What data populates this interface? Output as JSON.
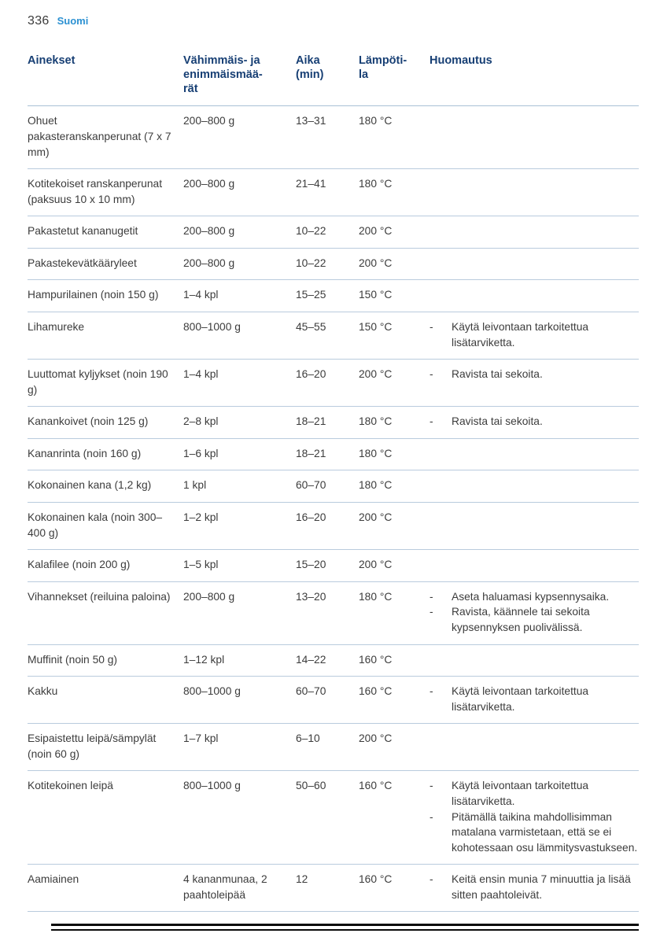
{
  "page": {
    "number": "336",
    "language": "Suomi"
  },
  "colors": {
    "heading_blue": "#173f74",
    "accent_blue": "#2c91d2",
    "body_text": "#3c3c3c",
    "table_rule": "#b9cbdd",
    "bottom_rule": "#0a0a0a"
  },
  "table": {
    "remark_bullet": "-",
    "headers": [
      "Ainekset",
      "Vähimmäis- ja\nenimmäismää-\nrät",
      "Aika\n(min)",
      "Lämpöti-\nla",
      "Huomautus"
    ],
    "rows": [
      {
        "ainekset": "Ohuet pakasteranskanperunat (7 x 7 mm)",
        "maara": "200–800 g",
        "aika": "13–31",
        "lampotila": "180 °C",
        "huomautus": []
      },
      {
        "ainekset": "Kotitekoiset ranskanperunat (paksuus 10 x 10 mm)",
        "maara": "200–800 g",
        "aika": "21–41",
        "lampotila": "180 °C",
        "huomautus": []
      },
      {
        "ainekset": "Pakastetut kananugetit",
        "maara": "200–800 g",
        "aika": "10–22",
        "lampotila": "200 °C",
        "huomautus": []
      },
      {
        "ainekset": "Pakastekevätkääryleet",
        "maara": "200–800 g",
        "aika": "10–22",
        "lampotila": "200 °C",
        "huomautus": []
      },
      {
        "ainekset": "Hampurilainen (noin 150 g)",
        "maara": "1–4 kpl",
        "aika": "15–25",
        "lampotila": "150 °C",
        "huomautus": []
      },
      {
        "ainekset": "Lihamureke",
        "maara": "800–1000 g",
        "aika": "45–55",
        "lampotila": "150 °C",
        "huomautus": [
          "Käytä leivontaan tarkoitettua lisätarviketta."
        ]
      },
      {
        "ainekset": "Luuttomat kyljykset (noin 190 g)",
        "maara": "1–4 kpl",
        "aika": "16–20",
        "lampotila": "200 °C",
        "huomautus": [
          "Ravista tai sekoita."
        ]
      },
      {
        "ainekset": "Kanankoivet (noin 125 g)",
        "maara": "2–8 kpl",
        "aika": "18–21",
        "lampotila": "180 °C",
        "huomautus": [
          "Ravista tai sekoita."
        ]
      },
      {
        "ainekset": "Kananrinta (noin 160 g)",
        "maara": "1–6 kpl",
        "aika": "18–21",
        "lampotila": "180 °C",
        "huomautus": []
      },
      {
        "ainekset": "Kokonainen kana (1,2 kg)",
        "maara": "1 kpl",
        "aika": "60–70",
        "lampotila": "180 °C",
        "huomautus": []
      },
      {
        "ainekset": "Kokonainen kala (noin 300–400 g)",
        "maara": "1–2 kpl",
        "aika": "16–20",
        "lampotila": "200 °C",
        "huomautus": []
      },
      {
        "ainekset": "Kalafilee (noin 200 g)",
        "maara": "1–5 kpl",
        "aika": "15–20",
        "lampotila": "200 °C",
        "huomautus": []
      },
      {
        "ainekset": "Vihannekset (reiluina paloina)",
        "maara": "200–800 g",
        "aika": "13–20",
        "lampotila": "180 °C",
        "huomautus": [
          "Aseta haluamasi kypsennysaika.",
          "Ravista, käännele tai sekoita kypsennyksen puolivälissä."
        ]
      },
      {
        "ainekset": "Muffinit (noin 50 g)",
        "maara": "1–12 kpl",
        "aika": "14–22",
        "lampotila": "160 °C",
        "huomautus": []
      },
      {
        "ainekset": "Kakku",
        "maara": "800–1000 g",
        "aika": "60–70",
        "lampotila": "160 °C",
        "huomautus": [
          "Käytä leivontaan tarkoitettua lisätarviketta."
        ]
      },
      {
        "ainekset": "Esipaistettu leipä/sämpylät (noin 60 g)",
        "maara": "1–7 kpl",
        "aika": "6–10",
        "lampotila": "200 °C",
        "huomautus": []
      },
      {
        "ainekset": "Kotitekoinen leipä",
        "maara": "800–1000 g",
        "aika": "50–60",
        "lampotila": "160 °C",
        "huomautus": [
          "Käytä leivontaan tarkoitettua lisätarviketta.",
          "Pitämällä taikina mahdollisimman matalana varmistetaan, että se ei kohotessaan osu lämmitysvastukseen."
        ]
      },
      {
        "ainekset": "Aamiainen",
        "maara": "4 kananmunaa, 2 paahtoleipää",
        "aika": "12",
        "lampotila": "160 °C",
        "huomautus": [
          "Keitä ensin munia 7 minuuttia ja lisää sitten paahtoleivät."
        ]
      }
    ]
  }
}
